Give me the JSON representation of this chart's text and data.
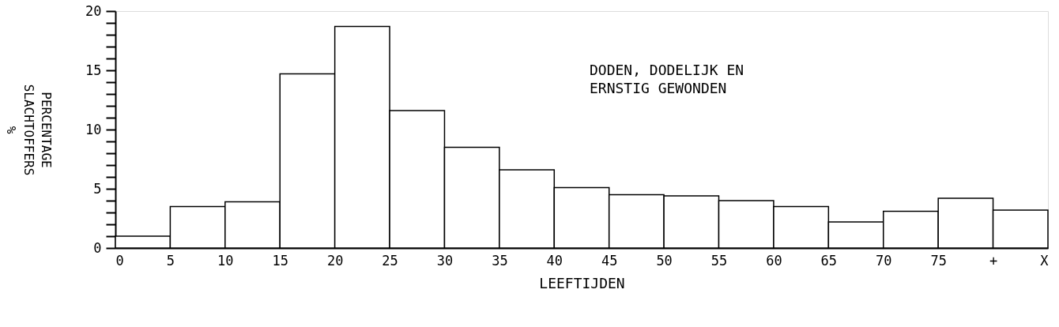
{
  "chart_data": {
    "type": "histogram",
    "annotations": [
      "DODEN, DODELIJK EN",
      "ERNSTIG GEWONDEN"
    ],
    "xlabel": "LEEFTIJDEN",
    "ylabel": "PERCENTAGE SLACHTOFFERS %",
    "bins": [
      0,
      5,
      10,
      15,
      20,
      25,
      30,
      35,
      40,
      45,
      50,
      55,
      60,
      65,
      70,
      75,
      80,
      85
    ],
    "values": [
      1.0,
      3.5,
      3.9,
      14.7,
      18.7,
      11.6,
      8.5,
      6.6,
      5.1,
      4.5,
      4.4,
      4.0,
      3.5,
      2.2,
      3.1,
      4.2,
      3.2
    ],
    "color": "#ffffff",
    "xlim": [
      0,
      85
    ],
    "xticks": [
      0,
      5,
      10,
      15,
      20,
      25,
      30,
      35,
      40,
      45,
      50,
      55,
      60,
      65,
      70,
      75,
      {
        "value": 80,
        "label": "+"
      },
      {
        "value": 85,
        "label": "X"
      }
    ],
    "ylim": [
      0,
      20
    ],
    "yticks": [
      0,
      {
        "value": 1,
        "label": null
      },
      {
        "value": 2,
        "label": null
      },
      {
        "value": 3,
        "label": null
      },
      {
        "value": 4,
        "label": null
      },
      5,
      {
        "value": 6,
        "label": null
      },
      {
        "value": 7,
        "label": null
      },
      {
        "value": 8,
        "label": null
      },
      {
        "value": 9,
        "label": null
      },
      10,
      {
        "value": 11,
        "label": null
      },
      {
        "value": 12,
        "label": null
      },
      {
        "value": 13,
        "label": null
      },
      {
        "value": 14,
        "label": null
      },
      15,
      {
        "value": 16,
        "label": null
      },
      {
        "value": 17,
        "label": null
      },
      {
        "value": 18,
        "label": null
      },
      {
        "value": 19,
        "label": null
      },
      20
    ],
    "grid": false
  }
}
